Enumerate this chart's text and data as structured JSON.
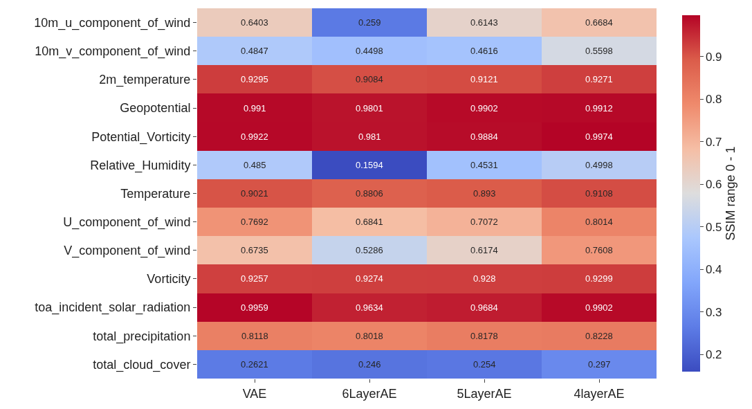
{
  "chart_data": {
    "type": "heatmap",
    "categories": [
      "VAE",
      "6LayerAE",
      "5LayerAE",
      "4layerAE"
    ],
    "y_categories": [
      "10m_u_component_of_wind",
      "10m_v_component_of_wind",
      "2m_temperature",
      "Geopotential",
      "Potential_Vorticity",
      "Relative_Humidity",
      "Temperature",
      "U_component_of_wind",
      "V_component_of_wind",
      "Vorticity",
      "toa_incident_solar_radiation",
      "total_precipitation",
      "total_cloud_cover"
    ],
    "cells": [
      [
        0.6403,
        0.259,
        0.6143,
        0.6684
      ],
      [
        0.4847,
        0.4498,
        0.4616,
        0.5598
      ],
      [
        0.9295,
        0.9084,
        0.9121,
        0.9271
      ],
      [
        0.991,
        0.9801,
        0.9902,
        0.9912
      ],
      [
        0.9922,
        0.981,
        0.9884,
        0.9974
      ],
      [
        0.485,
        0.1594,
        0.4531,
        0.4998
      ],
      [
        0.9021,
        0.8806,
        0.893,
        0.9108
      ],
      [
        0.7692,
        0.6841,
        0.7072,
        0.8014
      ],
      [
        0.6735,
        0.5286,
        0.6174,
        0.7608
      ],
      [
        0.9257,
        0.9274,
        0.928,
        0.9299
      ],
      [
        0.9959,
        0.9634,
        0.9684,
        0.9902
      ],
      [
        0.8118,
        0.8018,
        0.8178,
        0.8228
      ],
      [
        0.2621,
        0.246,
        0.254,
        0.297
      ]
    ],
    "data_labels": true,
    "clabel": "SSIM range 0 - 1",
    "clim": [
      0.1594,
      0.9974
    ],
    "cticks": [
      0.2,
      0.3,
      0.4,
      0.5,
      0.6,
      0.7,
      0.8,
      0.9
    ]
  }
}
